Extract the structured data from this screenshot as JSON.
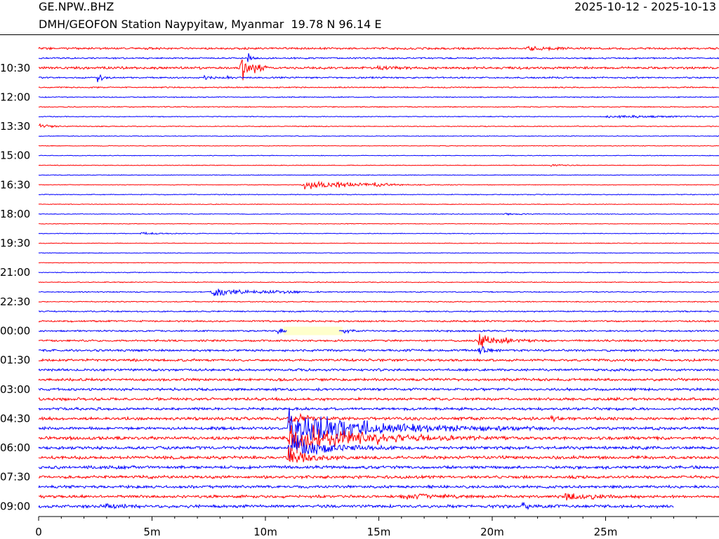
{
  "header": {
    "station_code": "GE.NPW..BHZ",
    "station_desc": "DMH/GEOFON Station Naypyitaw, Myanmar  19.78 N 96.14 E",
    "date_range": "2025-10-12 - 2025-10-13"
  },
  "chart_data": {
    "type": "line",
    "title": "GE.NPW..BHZ",
    "xlabel": "",
    "ylabel": "",
    "x_unit": "minutes",
    "xlim": [
      0,
      30
    ],
    "x_ticks": [
      {
        "value": 0,
        "label": "0"
      },
      {
        "value": 5,
        "label": "5m"
      },
      {
        "value": 10,
        "label": "10m"
      },
      {
        "value": 15,
        "label": "15m"
      },
      {
        "value": 20,
        "label": "20m"
      },
      {
        "value": 25,
        "label": "25m"
      }
    ],
    "y_labels": [
      {
        "row": 2,
        "label": "10:30"
      },
      {
        "row": 5,
        "label": "12:00"
      },
      {
        "row": 8,
        "label": "13:30"
      },
      {
        "row": 11,
        "label": "15:00"
      },
      {
        "row": 14,
        "label": "16:30"
      },
      {
        "row": 17,
        "label": "18:00"
      },
      {
        "row": 20,
        "label": "19:30"
      },
      {
        "row": 23,
        "label": "21:00"
      },
      {
        "row": 26,
        "label": "22:30"
      },
      {
        "row": 29,
        "label": "00:00"
      },
      {
        "row": 32,
        "label": "01:30"
      },
      {
        "row": 35,
        "label": "03:00"
      },
      {
        "row": 38,
        "label": "04:30"
      },
      {
        "row": 41,
        "label": "06:00"
      },
      {
        "row": 44,
        "label": "07:30"
      },
      {
        "row": 47,
        "label": "09:00"
      }
    ],
    "row_count": 48,
    "row_minutes": 30,
    "colors": [
      "#ff0000",
      "#0000ff"
    ],
    "noise": [
      1.2,
      0.9,
      1.4,
      0.9,
      0.7,
      0.6,
      0.6,
      0.5,
      0.5,
      0.4,
      0.4,
      0.4,
      0.4,
      0.4,
      0.4,
      0.5,
      0.4,
      0.4,
      0.4,
      0.4,
      0.4,
      0.4,
      0.4,
      0.5,
      0.5,
      0.6,
      0.6,
      0.8,
      1.0,
      1.0,
      1.1,
      1.3,
      1.4,
      1.4,
      1.5,
      1.5,
      1.6,
      1.6,
      1.7,
      1.7,
      1.8,
      1.8,
      1.8,
      1.8,
      1.7,
      1.6,
      1.6,
      1.8
    ],
    "gap": {
      "row": 29,
      "start": 10.8,
      "end": 13.4,
      "color": "#ffffcc"
    },
    "end_marker": {
      "row": 47,
      "x": 28.0
    },
    "events": [
      {
        "row": 2,
        "t": 8.9,
        "amp": 30,
        "dur": 0.6
      },
      {
        "row": 1,
        "t": 9.2,
        "amp": 14,
        "dur": 0.2
      },
      {
        "row": 3,
        "t": 2.6,
        "amp": 8,
        "dur": 0.3
      },
      {
        "row": 3,
        "t": 7.3,
        "amp": 6,
        "dur": 0.3
      },
      {
        "row": 3,
        "t": 8.3,
        "amp": 4,
        "dur": 0.3
      },
      {
        "row": 0,
        "t": 21.5,
        "amp": 3,
        "dur": 1.5
      },
      {
        "row": 2,
        "t": 14.8,
        "amp": 3,
        "dur": 1.5
      },
      {
        "row": 8,
        "t": 0.0,
        "amp": 4,
        "dur": 0.8
      },
      {
        "row": 7,
        "t": 25.0,
        "amp": 2,
        "dur": 4.5
      },
      {
        "row": 12,
        "t": 22.5,
        "amp": 2,
        "dur": 0.8
      },
      {
        "row": 14,
        "t": 11.6,
        "amp": 9,
        "dur": 2.8
      },
      {
        "row": 14,
        "t": 14.8,
        "amp": 4,
        "dur": 0.5
      },
      {
        "row": 17,
        "t": 20.5,
        "amp": 2,
        "dur": 0.8
      },
      {
        "row": 19,
        "t": 4.5,
        "amp": 2,
        "dur": 1.2
      },
      {
        "row": 25,
        "t": 7.6,
        "amp": 9,
        "dur": 2.0
      },
      {
        "row": 25,
        "t": 10.0,
        "amp": 3,
        "dur": 1.2
      },
      {
        "row": 29,
        "t": 10.5,
        "amp": 8,
        "dur": 0.3
      },
      {
        "row": 29,
        "t": 13.4,
        "amp": 8,
        "dur": 0.3
      },
      {
        "row": 30,
        "t": 19.4,
        "amp": 14,
        "dur": 1.3
      },
      {
        "row": 31,
        "t": 19.4,
        "amp": 10,
        "dur": 0.4
      },
      {
        "row": 38,
        "t": 22.6,
        "amp": 5,
        "dur": 0.4
      },
      {
        "row": 39,
        "t": 11.0,
        "amp": 32,
        "dur": 4.5
      },
      {
        "row": 40,
        "t": 11.0,
        "amp": 30,
        "dur": 4.0
      },
      {
        "row": 41,
        "t": 11.0,
        "amp": 22,
        "dur": 2.0
      },
      {
        "row": 42,
        "t": 11.0,
        "amp": 16,
        "dur": 1.2
      },
      {
        "row": 38,
        "t": 11.0,
        "amp": 12,
        "dur": 1.0
      },
      {
        "row": 46,
        "t": 16.0,
        "amp": 5,
        "dur": 2.0
      },
      {
        "row": 46,
        "t": 23.2,
        "amp": 7,
        "dur": 1.4
      },
      {
        "row": 47,
        "t": 2.8,
        "amp": 4,
        "dur": 1.0
      },
      {
        "row": 47,
        "t": 21.3,
        "amp": 6,
        "dur": 0.5
      }
    ]
  }
}
